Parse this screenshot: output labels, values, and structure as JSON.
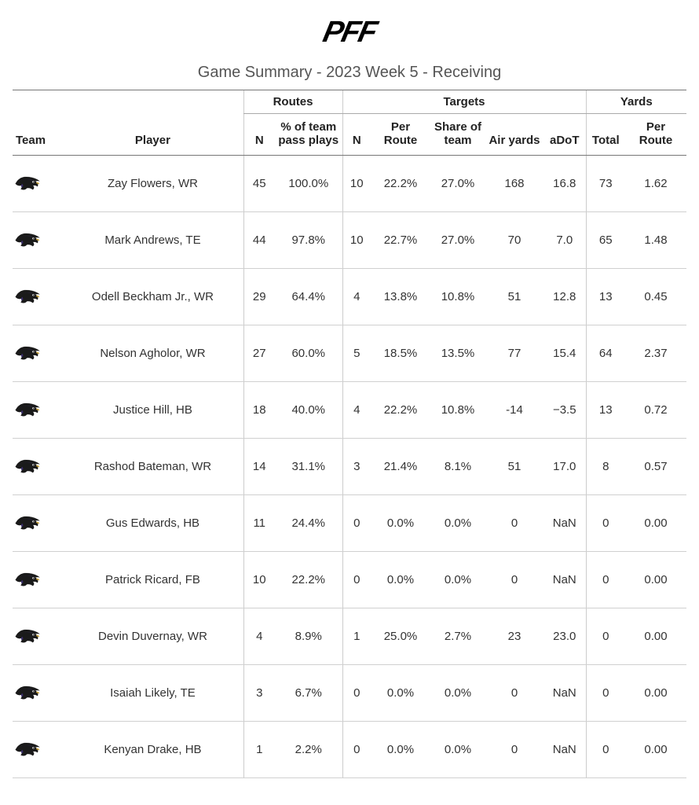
{
  "logo_text": "PFF",
  "subtitle": "Game Summary - 2023 Week 5 - Receiving",
  "group_headers": {
    "routes": "Routes",
    "targets": "Targets",
    "yards": "Yards"
  },
  "columns": {
    "team": "Team",
    "player": "Player",
    "routes_n": "N",
    "routes_pct": "% of team pass plays",
    "targets_n": "N",
    "targets_per_route": "Per Route",
    "targets_share": "Share of team",
    "targets_air_yards": "Air yards",
    "targets_adot": "aDoT",
    "yards_total": "Total",
    "yards_per_route": "Per Route"
  },
  "rows": [
    {
      "player": "Zay Flowers, WR",
      "routes_n": "45",
      "routes_pct": "100.0%",
      "t_n": "10",
      "t_pr": "22.2%",
      "t_sh": "27.0%",
      "t_ay": "168",
      "t_ad": "16.8",
      "y_tot": "73",
      "y_pr": "1.62"
    },
    {
      "player": "Mark Andrews, TE",
      "routes_n": "44",
      "routes_pct": "97.8%",
      "t_n": "10",
      "t_pr": "22.7%",
      "t_sh": "27.0%",
      "t_ay": "70",
      "t_ad": "7.0",
      "y_tot": "65",
      "y_pr": "1.48"
    },
    {
      "player": "Odell Beckham Jr., WR",
      "routes_n": "29",
      "routes_pct": "64.4%",
      "t_n": "4",
      "t_pr": "13.8%",
      "t_sh": "10.8%",
      "t_ay": "51",
      "t_ad": "12.8",
      "y_tot": "13",
      "y_pr": "0.45"
    },
    {
      "player": "Nelson Agholor, WR",
      "routes_n": "27",
      "routes_pct": "60.0%",
      "t_n": "5",
      "t_pr": "18.5%",
      "t_sh": "13.5%",
      "t_ay": "77",
      "t_ad": "15.4",
      "y_tot": "64",
      "y_pr": "2.37"
    },
    {
      "player": "Justice Hill, HB",
      "routes_n": "18",
      "routes_pct": "40.0%",
      "t_n": "4",
      "t_pr": "22.2%",
      "t_sh": "10.8%",
      "t_ay": "-14",
      "t_ad": "−3.5",
      "y_tot": "13",
      "y_pr": "0.72"
    },
    {
      "player": "Rashod Bateman, WR",
      "routes_n": "14",
      "routes_pct": "31.1%",
      "t_n": "3",
      "t_pr": "21.4%",
      "t_sh": "8.1%",
      "t_ay": "51",
      "t_ad": "17.0",
      "y_tot": "8",
      "y_pr": "0.57"
    },
    {
      "player": "Gus Edwards, HB",
      "routes_n": "11",
      "routes_pct": "24.4%",
      "t_n": "0",
      "t_pr": "0.0%",
      "t_sh": "0.0%",
      "t_ay": "0",
      "t_ad": "NaN",
      "y_tot": "0",
      "y_pr": "0.00"
    },
    {
      "player": "Patrick Ricard, FB",
      "routes_n": "10",
      "routes_pct": "22.2%",
      "t_n": "0",
      "t_pr": "0.0%",
      "t_sh": "0.0%",
      "t_ay": "0",
      "t_ad": "NaN",
      "y_tot": "0",
      "y_pr": "0.00"
    },
    {
      "player": "Devin Duvernay, WR",
      "routes_n": "4",
      "routes_pct": "8.9%",
      "t_n": "1",
      "t_pr": "25.0%",
      "t_sh": "2.7%",
      "t_ay": "23",
      "t_ad": "23.0",
      "y_tot": "0",
      "y_pr": "0.00"
    },
    {
      "player": "Isaiah Likely, TE",
      "routes_n": "3",
      "routes_pct": "6.7%",
      "t_n": "0",
      "t_pr": "0.0%",
      "t_sh": "0.0%",
      "t_ay": "0",
      "t_ad": "NaN",
      "y_tot": "0",
      "y_pr": "0.00"
    },
    {
      "player": "Kenyan Drake, HB",
      "routes_n": "1",
      "routes_pct": "2.2%",
      "t_n": "0",
      "t_pr": "0.0%",
      "t_sh": "0.0%",
      "t_ay": "0",
      "t_ad": "NaN",
      "y_tot": "0",
      "y_pr": "0.00"
    }
  ]
}
